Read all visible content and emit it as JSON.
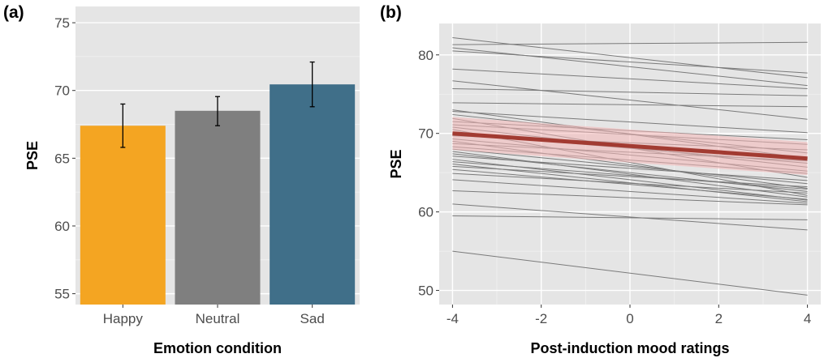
{
  "chart_data": [
    {
      "panel_label": "(a)",
      "type": "bar",
      "categories": [
        "Happy",
        "Neutral",
        "Sad"
      ],
      "values": [
        67.4,
        68.5,
        70.45
      ],
      "errors_low": [
        65.8,
        67.4,
        68.8
      ],
      "errors_high": [
        69.0,
        69.55,
        72.1
      ],
      "colors": [
        "#f4a522",
        "#7f7f7f",
        "#406f89"
      ],
      "xlabel": "Emotion condition",
      "ylabel": "PSE",
      "ylim": [
        54.2,
        76.2
      ],
      "yticks": [
        55,
        60,
        65,
        70,
        75
      ],
      "grid": true,
      "background": "#e5e5e5"
    },
    {
      "panel_label": "(b)",
      "type": "line",
      "xlabel": "Post-induction mood ratings",
      "ylabel": "PSE",
      "xlim": [
        -4.3,
        4.3
      ],
      "ylim": [
        48.2,
        84.0
      ],
      "xticks": [
        -4,
        -2,
        0,
        2,
        4
      ],
      "yticks": [
        50,
        60,
        70,
        80
      ],
      "grid": true,
      "background": "#e5e5e5",
      "individual_lines_color": "#7a7a7a",
      "individual_lines": [
        [
          -4,
          82.2,
          4,
          77.1
        ],
        [
          -4,
          81.3,
          4,
          81.6
        ],
        [
          -4,
          80.9,
          4,
          76.1
        ],
        [
          -4,
          80.5,
          4,
          77.7
        ],
        [
          -4,
          78.2,
          4,
          75.7
        ],
        [
          -4,
          76.7,
          4,
          71.8
        ],
        [
          -4,
          75.7,
          4,
          74.8
        ],
        [
          -4,
          73.9,
          4,
          73.4
        ],
        [
          -4,
          73.0,
          4,
          66.8
        ],
        [
          -4,
          72.8,
          4,
          70.1
        ],
        [
          -4,
          72.4,
          4,
          67.5
        ],
        [
          -4,
          71.9,
          4,
          64.4
        ],
        [
          -4,
          71.5,
          4,
          69.2
        ],
        [
          -4,
          71.1,
          4,
          68.6
        ],
        [
          -4,
          70.8,
          4,
          65.7
        ],
        [
          -4,
          70.5,
          4,
          62.1
        ],
        [
          -4,
          70.0,
          4,
          66.2
        ],
        [
          -4,
          69.7,
          4,
          67.9
        ],
        [
          -4,
          69.3,
          4,
          65.2
        ],
        [
          -4,
          69.0,
          4,
          63.0
        ],
        [
          -4,
          68.7,
          4,
          66.5
        ],
        [
          -4,
          68.3,
          4,
          64.9
        ],
        [
          -4,
          68.0,
          4,
          63.6
        ],
        [
          -4,
          67.7,
          4,
          61.9
        ],
        [
          -4,
          67.4,
          4,
          62.6
        ],
        [
          -4,
          67.1,
          4,
          64.0
        ],
        [
          -4,
          66.7,
          4,
          61.5
        ],
        [
          -4,
          66.4,
          4,
          62.9
        ],
        [
          -4,
          66.1,
          4,
          61.3
        ],
        [
          -4,
          65.8,
          4,
          63.2
        ],
        [
          -4,
          65.4,
          4,
          61.6
        ],
        [
          -4,
          64.9,
          4,
          62.4
        ],
        [
          -4,
          64.1,
          4,
          61.1
        ],
        [
          -4,
          62.7,
          4,
          60.9
        ],
        [
          -4,
          61.0,
          4,
          57.7
        ],
        [
          -4,
          59.5,
          4,
          59.0
        ],
        [
          -4,
          55.0,
          4,
          49.4
        ]
      ],
      "mean_line": [
        -4,
        70.0,
        4,
        66.8
      ],
      "mean_ci_low": [
        -4,
        67.9,
        4,
        64.7
      ],
      "mean_ci_high": [
        -4,
        72.1,
        4,
        68.9
      ],
      "mean_line_color": "#a23b32",
      "ci_color": "#f4b6b6"
    }
  ]
}
